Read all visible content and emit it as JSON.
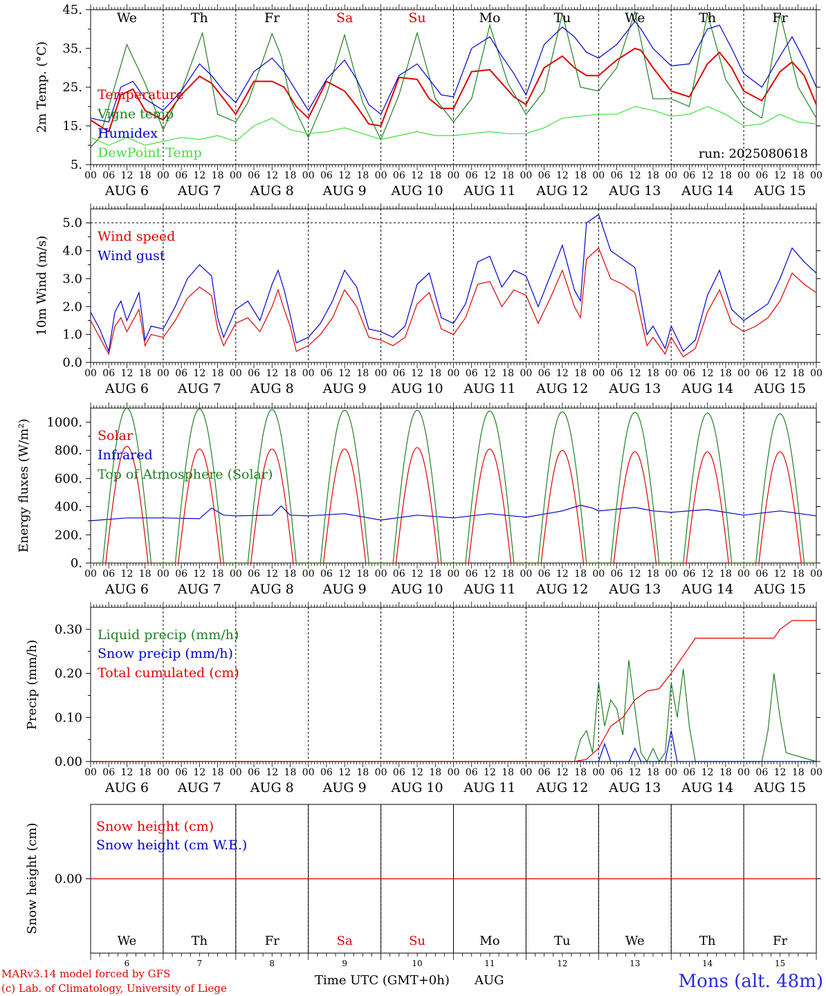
{
  "page": {
    "footer_credit_1": "MARv3.14 model forced by GFS",
    "footer_credit_2": "(c) Lab. of Climatology, University of Liege",
    "x_axis_title": "Time UTC (GMT+0h)",
    "x_axis_month": "AUG",
    "station": "Mons (alt. 48m)",
    "run_label": "run: 2025080618"
  },
  "days": {
    "weekdays": [
      "We",
      "Th",
      "Fr",
      "Sa",
      "Su",
      "Mo",
      "Tu",
      "We",
      "Th",
      "Fr"
    ],
    "weekday_colors": [
      "#000000",
      "#000000",
      "#000000",
      "#e00000",
      "#e00000",
      "#000000",
      "#000000",
      "#000000",
      "#000000",
      "#000000"
    ],
    "date_labels": [
      "AUG  6",
      "AUG  7",
      "AUG  8",
      "AUG  9",
      "AUG 10",
      "AUG 11",
      "AUG 12",
      "AUG 13",
      "AUG 14",
      "AUG 15"
    ],
    "day_numbers": [
      "6",
      "7",
      "8",
      "9",
      "10",
      "11",
      "12",
      "13",
      "14",
      "15"
    ],
    "hour_ticks": [
      "00",
      "06",
      "12",
      "18"
    ],
    "end_tick": "00"
  },
  "chart_data": [
    {
      "type": "line",
      "id": "temperature",
      "ylabel": "2m Temp. (°C)",
      "ylim": [
        5,
        45
      ],
      "yticks": [
        "5.",
        "15.",
        "25.",
        "35.",
        "45."
      ],
      "ytick_values": [
        5,
        15,
        25,
        35,
        45
      ],
      "x_unit": "hours since 00 UTC AUG 6",
      "xlim": [
        0,
        240
      ],
      "series": [
        {
          "name": "Temperature",
          "color": "#e00000",
          "x": [
            0,
            6,
            10,
            14,
            18,
            24,
            30,
            36,
            40,
            44,
            48,
            54,
            60,
            64,
            68,
            72,
            78,
            84,
            88,
            92,
            96,
            102,
            108,
            112,
            116,
            120,
            126,
            132,
            136,
            140,
            144,
            150,
            156,
            160,
            164,
            168,
            174,
            180,
            182,
            186,
            192,
            198,
            204,
            208,
            212,
            216,
            222,
            228,
            232,
            236,
            240
          ],
          "y": [
            16.5,
            13.5,
            23,
            24.5,
            19,
            16.5,
            23,
            27.8,
            26,
            22,
            18,
            26.5,
            26.5,
            25,
            20,
            17,
            26.5,
            24,
            20,
            15.5,
            15,
            27.5,
            27,
            22,
            19.5,
            19.5,
            29,
            29.5,
            26,
            22.5,
            20.5,
            30,
            33,
            30,
            28,
            28,
            32,
            35,
            34.5,
            30,
            24,
            22.5,
            31,
            34,
            30,
            24,
            21.5,
            29,
            31.5,
            28,
            20.5
          ]
        },
        {
          "name": "Vigne temp",
          "color": "#208020",
          "x": [
            0,
            3,
            6,
            12,
            18,
            24,
            30,
            37,
            42,
            48,
            52,
            60,
            63,
            66,
            72,
            78,
            84,
            90,
            96,
            102,
            108,
            114,
            120,
            126,
            132,
            138,
            144,
            150,
            156,
            162,
            168,
            174,
            180,
            186,
            192,
            198,
            204,
            210,
            216,
            222,
            228,
            234,
            240
          ],
          "y": [
            9.5,
            12,
            20,
            36,
            26,
            14,
            24,
            39,
            18,
            16,
            21,
            38.8,
            33,
            22,
            12,
            23,
            38.5,
            21,
            11.5,
            23,
            39,
            22,
            16,
            22,
            41,
            26,
            18,
            24,
            44,
            25,
            24,
            30,
            44.5,
            22,
            22,
            20,
            44,
            27,
            20,
            17,
            44,
            25,
            17
          ]
        },
        {
          "name": "Humidex",
          "color": "#0000d0",
          "x": [
            0,
            6,
            10,
            14,
            18,
            24,
            30,
            36,
            40,
            44,
            48,
            54,
            60,
            64,
            68,
            72,
            78,
            84,
            88,
            92,
            96,
            102,
            108,
            112,
            116,
            120,
            126,
            132,
            136,
            140,
            144,
            150,
            156,
            160,
            164,
            168,
            174,
            180,
            182,
            186,
            192,
            198,
            204,
            208,
            212,
            216,
            222,
            228,
            232,
            236,
            240
          ],
          "y": [
            17,
            16,
            25,
            26.5,
            22,
            19,
            24,
            31,
            28,
            24,
            21,
            29,
            32.5,
            29,
            24,
            19,
            27,
            32,
            27,
            20.5,
            18,
            28,
            31,
            27,
            23,
            22.5,
            35,
            38,
            33,
            28.5,
            23,
            36,
            40.5,
            38,
            34,
            32.5,
            36,
            42,
            40,
            35,
            30.5,
            31,
            40,
            41,
            35,
            28.5,
            25,
            33,
            38,
            32,
            25
          ]
        },
        {
          "name": "DewPoint Temp",
          "color": "#40e040",
          "x": [
            0,
            6,
            12,
            18,
            24,
            30,
            36,
            42,
            48,
            54,
            60,
            66,
            72,
            78,
            84,
            90,
            96,
            102,
            108,
            114,
            120,
            126,
            132,
            138,
            144,
            150,
            156,
            162,
            168,
            174,
            180,
            186,
            192,
            198,
            204,
            210,
            216,
            222,
            228,
            234,
            240
          ],
          "y": [
            12,
            10,
            12,
            10,
            11,
            12,
            11.5,
            12.5,
            11,
            15,
            17,
            14,
            13,
            13.5,
            14.5,
            13,
            11.5,
            12.5,
            13.5,
            12.5,
            12.5,
            13,
            13.5,
            13,
            13,
            14.5,
            17,
            17.5,
            18,
            18,
            20,
            19,
            17.5,
            18,
            20,
            18,
            15,
            15.5,
            18,
            16,
            15.5
          ]
        }
      ]
    },
    {
      "type": "line",
      "id": "wind",
      "ylabel": "10m Wind (m/s)",
      "ylim": [
        0,
        5.5
      ],
      "yticks": [
        "0.0",
        "1.0",
        "2.0",
        "3.0",
        "4.0",
        "5.0"
      ],
      "ytick_values": [
        0,
        1,
        2,
        3,
        4,
        5
      ],
      "reference_line": 5.0,
      "x_unit": "hours since 00 UTC AUG 6",
      "xlim": [
        0,
        240
      ],
      "series": [
        {
          "name": "Wind speed",
          "color": "#e00000",
          "x": [
            0,
            3,
            6,
            8,
            10,
            12,
            16,
            18,
            20,
            24,
            28,
            32,
            36,
            40,
            42,
            44,
            48,
            52,
            56,
            60,
            62,
            64,
            66,
            68,
            72,
            76,
            80,
            84,
            88,
            92,
            96,
            100,
            104,
            108,
            112,
            116,
            120,
            124,
            128,
            132,
            136,
            140,
            144,
            148,
            152,
            156,
            160,
            162,
            164,
            168,
            172,
            176,
            180,
            184,
            186,
            190,
            192,
            196,
            200,
            204,
            208,
            212,
            216,
            220,
            224,
            228,
            232,
            236,
            240
          ],
          "y": [
            1.5,
            0.9,
            0.3,
            1.3,
            1.6,
            1.1,
            1.9,
            0.6,
            1.0,
            0.9,
            1.5,
            2.3,
            2.7,
            2.4,
            1.2,
            0.6,
            1.4,
            1.6,
            1.1,
            2.0,
            2.6,
            1.9,
            1.3,
            0.4,
            0.6,
            1.0,
            1.6,
            2.6,
            2.0,
            0.9,
            0.8,
            0.6,
            0.9,
            2.1,
            2.5,
            1.2,
            1.0,
            1.6,
            2.8,
            2.9,
            2.0,
            2.6,
            2.4,
            1.4,
            2.3,
            3.3,
            2.0,
            1.6,
            3.7,
            4.1,
            3.0,
            2.8,
            2.5,
            0.6,
            0.9,
            0.3,
            0.9,
            0.2,
            0.5,
            1.8,
            2.6,
            1.4,
            1.1,
            1.3,
            1.6,
            2.2,
            3.2,
            2.8,
            2.5
          ]
        },
        {
          "name": "Wind gust",
          "color": "#0000d0",
          "x": [
            0,
            3,
            6,
            8,
            10,
            12,
            16,
            18,
            20,
            24,
            28,
            32,
            36,
            40,
            42,
            44,
            48,
            52,
            56,
            60,
            62,
            64,
            66,
            68,
            72,
            76,
            80,
            84,
            88,
            92,
            96,
            100,
            104,
            108,
            112,
            116,
            120,
            124,
            128,
            132,
            136,
            140,
            144,
            148,
            152,
            156,
            160,
            162,
            164,
            168,
            172,
            176,
            180,
            184,
            186,
            190,
            192,
            196,
            200,
            204,
            208,
            212,
            216,
            220,
            224,
            228,
            232,
            236,
            240
          ],
          "y": [
            1.8,
            1.2,
            0.4,
            1.8,
            2.2,
            1.5,
            2.5,
            0.8,
            1.3,
            1.2,
            2.0,
            3.0,
            3.5,
            3.1,
            1.6,
            0.9,
            1.9,
            2.2,
            1.5,
            2.8,
            3.3,
            2.6,
            1.7,
            0.7,
            0.9,
            1.4,
            2.2,
            3.3,
            2.7,
            1.2,
            1.1,
            0.9,
            1.3,
            2.8,
            3.2,
            1.6,
            1.4,
            2.1,
            3.6,
            3.8,
            2.7,
            3.3,
            3.1,
            2.0,
            3.1,
            4.2,
            2.6,
            2.2,
            5.0,
            5.3,
            4.0,
            3.7,
            3.4,
            1.0,
            1.3,
            0.5,
            1.3,
            0.4,
            0.8,
            2.4,
            3.3,
            1.9,
            1.5,
            1.8,
            2.1,
            3.0,
            4.1,
            3.6,
            3.2
          ]
        }
      ]
    },
    {
      "type": "line",
      "id": "energy",
      "ylabel": "Energy fluxes (W/m²)",
      "ylim": [
        0,
        1100
      ],
      "yticks": [
        "0.",
        "200.",
        "400.",
        "600.",
        "800.",
        "1000."
      ],
      "ytick_values": [
        0,
        200,
        400,
        600,
        800,
        1000
      ],
      "x_unit": "hours since 00 UTC AUG 6",
      "xlim": [
        0,
        240
      ],
      "daily_peaks": {
        "Solar": [
          830,
          810,
          810,
          810,
          820,
          810,
          800,
          790,
          790,
          790
        ],
        "Top of Atmosphere (Solar)": [
          1100,
          1095,
          1090,
          1085,
          1085,
          1080,
          1075,
          1070,
          1065,
          1060
        ]
      },
      "series": [
        {
          "name": "Solar",
          "color": "#e00000"
        },
        {
          "name": "Infrared",
          "color": "#0000d0",
          "x": [
            0,
            12,
            24,
            36,
            40,
            44,
            48,
            60,
            63,
            66,
            72,
            84,
            96,
            108,
            120,
            132,
            144,
            156,
            162,
            166,
            168,
            180,
            186,
            192,
            204,
            216,
            228,
            240
          ],
          "y": [
            300,
            320,
            320,
            315,
            390,
            340,
            335,
            340,
            405,
            340,
            335,
            350,
            305,
            340,
            320,
            350,
            325,
            370,
            410,
            390,
            370,
            395,
            370,
            360,
            380,
            340,
            370,
            335
          ]
        },
        {
          "name": "Top of Atmosphere (Solar)",
          "color": "#208020"
        }
      ]
    },
    {
      "type": "line",
      "id": "precip",
      "ylabel": "Precip (mm/h)",
      "ylim": [
        0,
        0.35
      ],
      "yticks": [
        "0.00",
        "0.10",
        "0.20",
        "0.30"
      ],
      "ytick_values": [
        0,
        0.1,
        0.2,
        0.3
      ],
      "x_unit": "hours since 00 UTC AUG 6",
      "xlim": [
        0,
        240
      ],
      "series": [
        {
          "name": "Liquid precip (mm/h)",
          "color": "#208020",
          "x": [
            0,
            160,
            162,
            164,
            166,
            168,
            170,
            172,
            174,
            176,
            178,
            180,
            182,
            184,
            186,
            188,
            190,
            192,
            194,
            196,
            198,
            200,
            202,
            210,
            222,
            224,
            226,
            228,
            230,
            240
          ],
          "y": [
            0,
            0,
            0.05,
            0.07,
            0.02,
            0.18,
            0.08,
            0.14,
            0.12,
            0.06,
            0.23,
            0.12,
            0.02,
            0,
            0.03,
            0,
            0.02,
            0.18,
            0.1,
            0.21,
            0.08,
            0,
            0,
            0,
            0,
            0.07,
            0.2,
            0.1,
            0.02,
            0
          ]
        },
        {
          "name": "Snow precip (mm/h)",
          "color": "#0000d0",
          "x": [
            0,
            168,
            170,
            172,
            178,
            180,
            182,
            190,
            192,
            194,
            196,
            240
          ],
          "y": [
            0,
            0,
            0.04,
            0,
            0,
            0.03,
            0,
            0,
            0.07,
            0,
            0,
            0
          ]
        },
        {
          "name": "Total cumulated (cm)",
          "color": "#e00000",
          "x": [
            0,
            160,
            164,
            168,
            172,
            176,
            180,
            184,
            188,
            192,
            196,
            200,
            210,
            226,
            228,
            232,
            240
          ],
          "y": [
            0,
            0,
            0.005,
            0.03,
            0.08,
            0.1,
            0.14,
            0.16,
            0.165,
            0.2,
            0.24,
            0.28,
            0.28,
            0.28,
            0.3,
            0.32,
            0.32
          ]
        }
      ]
    },
    {
      "type": "line",
      "id": "snow",
      "ylabel": "Snow height (cm)",
      "ylim": [
        -1,
        1
      ],
      "yticks": [
        "0.00"
      ],
      "ytick_values": [
        0
      ],
      "x_unit": "hours since 00 UTC AUG 6",
      "xlim": [
        0,
        240
      ],
      "series": [
        {
          "name": "Snow height (cm)",
          "color": "#e00000",
          "x": [
            0,
            240
          ],
          "y": [
            0,
            0
          ]
        },
        {
          "name": "Snow height (cm W.E.)",
          "color": "#0000d0"
        }
      ]
    }
  ]
}
